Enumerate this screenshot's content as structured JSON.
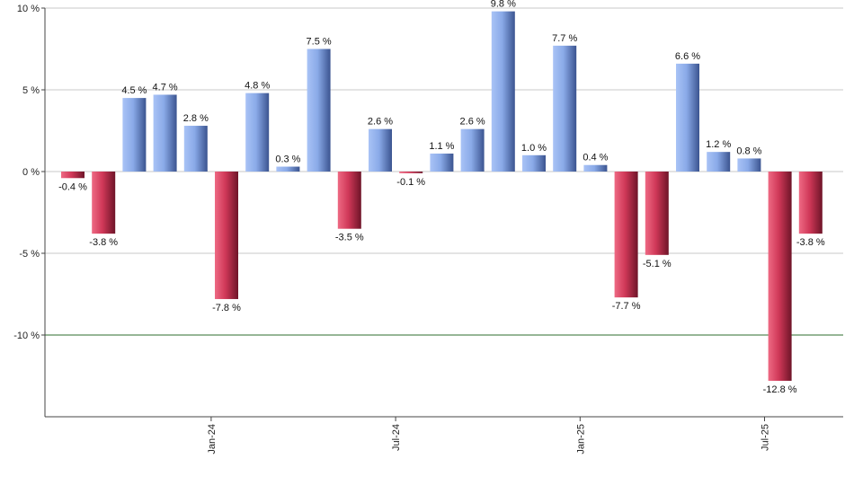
{
  "chart_data": {
    "type": "bar",
    "title": "",
    "xlabel": "",
    "ylabel": "",
    "ylim": [
      -15,
      10
    ],
    "y_ticks": [
      10,
      5,
      0,
      -5,
      -10
    ],
    "y_tick_labels": [
      "10 %",
      "5 %",
      "0 %",
      "-5 %",
      "-10 %"
    ],
    "x_tick_labels": [
      "Jan-24",
      "Jul-24",
      "Jan-25",
      "Jul-25"
    ],
    "x_tick_positions": [
      4.5,
      10.5,
      16.5,
      22.5
    ],
    "reference_line": -10,
    "grid": true,
    "legend": "none",
    "values": [
      -0.4,
      -3.8,
      4.5,
      4.7,
      2.8,
      -7.8,
      4.8,
      0.3,
      7.5,
      -3.5,
      2.6,
      -0.1,
      1.1,
      2.6,
      9.8,
      1.0,
      7.7,
      0.4,
      -7.7,
      -5.1,
      6.6,
      1.2,
      0.8,
      -12.8,
      -3.8
    ],
    "value_labels": [
      "-0.4 %",
      "-3.8 %",
      "4.5 %",
      "4.7 %",
      "2.8 %",
      "-7.8 %",
      "4.8 %",
      "0.3 %",
      "7.5 %",
      "-3.5 %",
      "2.6 %",
      "-0.1 %",
      "1.1 %",
      "2.6 %",
      "9.8 %",
      "1.0 %",
      "7.7 %",
      "0.4 %",
      "-7.7 %",
      "-5.1 %",
      "6.6 %",
      "1.2 %",
      "0.8 %",
      "-12.8 %",
      "-3.8 %"
    ],
    "colors": {
      "positive": "#7f9fe0",
      "negative": "#c83050",
      "reference_line": "#2e6e2e",
      "grid": "#c8c8c8",
      "axis": "#444444"
    }
  }
}
